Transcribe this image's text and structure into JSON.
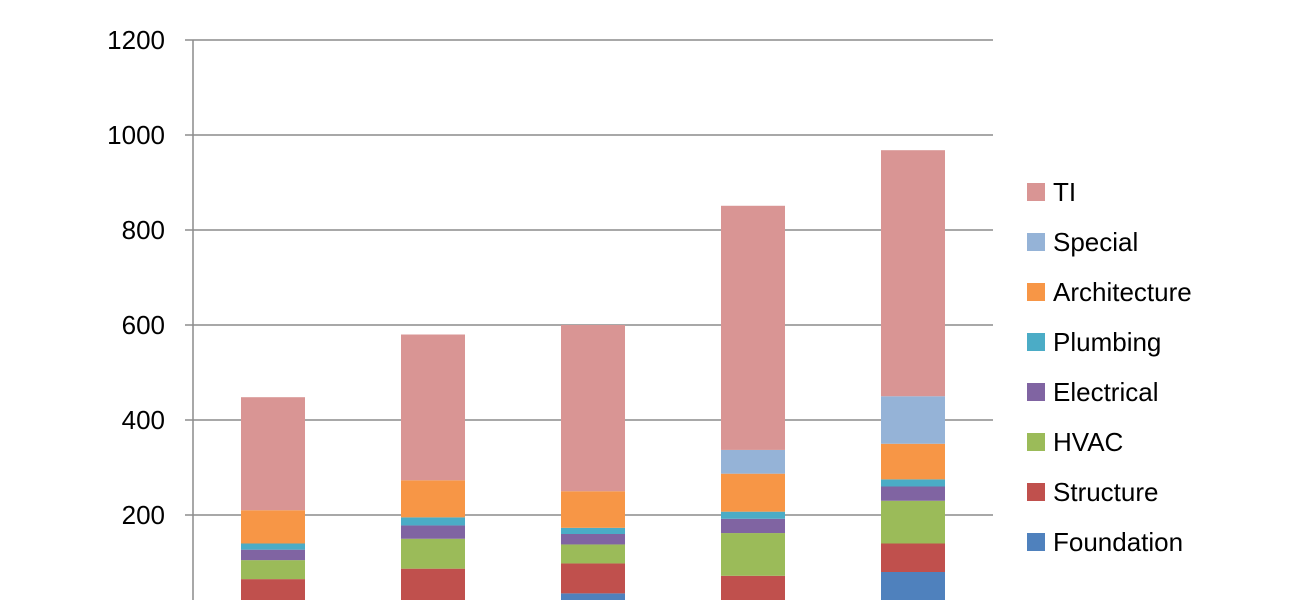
{
  "chart_data": {
    "type": "bar",
    "stacked": true,
    "title": "",
    "xlabel": "",
    "ylabel": "",
    "ylim": [
      0,
      1200
    ],
    "yticks": [
      200,
      400,
      600,
      800,
      1000,
      1200
    ],
    "grid": true,
    "legend_position": "right",
    "categories": [
      "",
      "",
      "",
      "",
      ""
    ],
    "series": [
      {
        "name": "Foundation",
        "color": "#4F81BD",
        "values": [
          0,
          0,
          35,
          0,
          80
        ]
      },
      {
        "name": "Structure",
        "color": "#C0504D",
        "values": [
          65,
          87,
          63,
          72,
          60
        ]
      },
      {
        "name": "HVAC",
        "color": "#9BBB59",
        "values": [
          40,
          63,
          40,
          90,
          90
        ]
      },
      {
        "name": "Electrical",
        "color": "#8064A2",
        "values": [
          22,
          28,
          22,
          30,
          30
        ]
      },
      {
        "name": "Plumbing",
        "color": "#4BACC6",
        "values": [
          13,
          17,
          13,
          15,
          15
        ]
      },
      {
        "name": "Architecture",
        "color": "#F79646",
        "values": [
          70,
          78,
          77,
          80,
          75
        ]
      },
      {
        "name": "Special",
        "color": "#95B3D7",
        "values": [
          0,
          0,
          0,
          50,
          100
        ]
      },
      {
        "name": "TI",
        "color": "#D99594",
        "values": [
          238,
          307,
          350,
          514,
          518
        ]
      }
    ]
  }
}
